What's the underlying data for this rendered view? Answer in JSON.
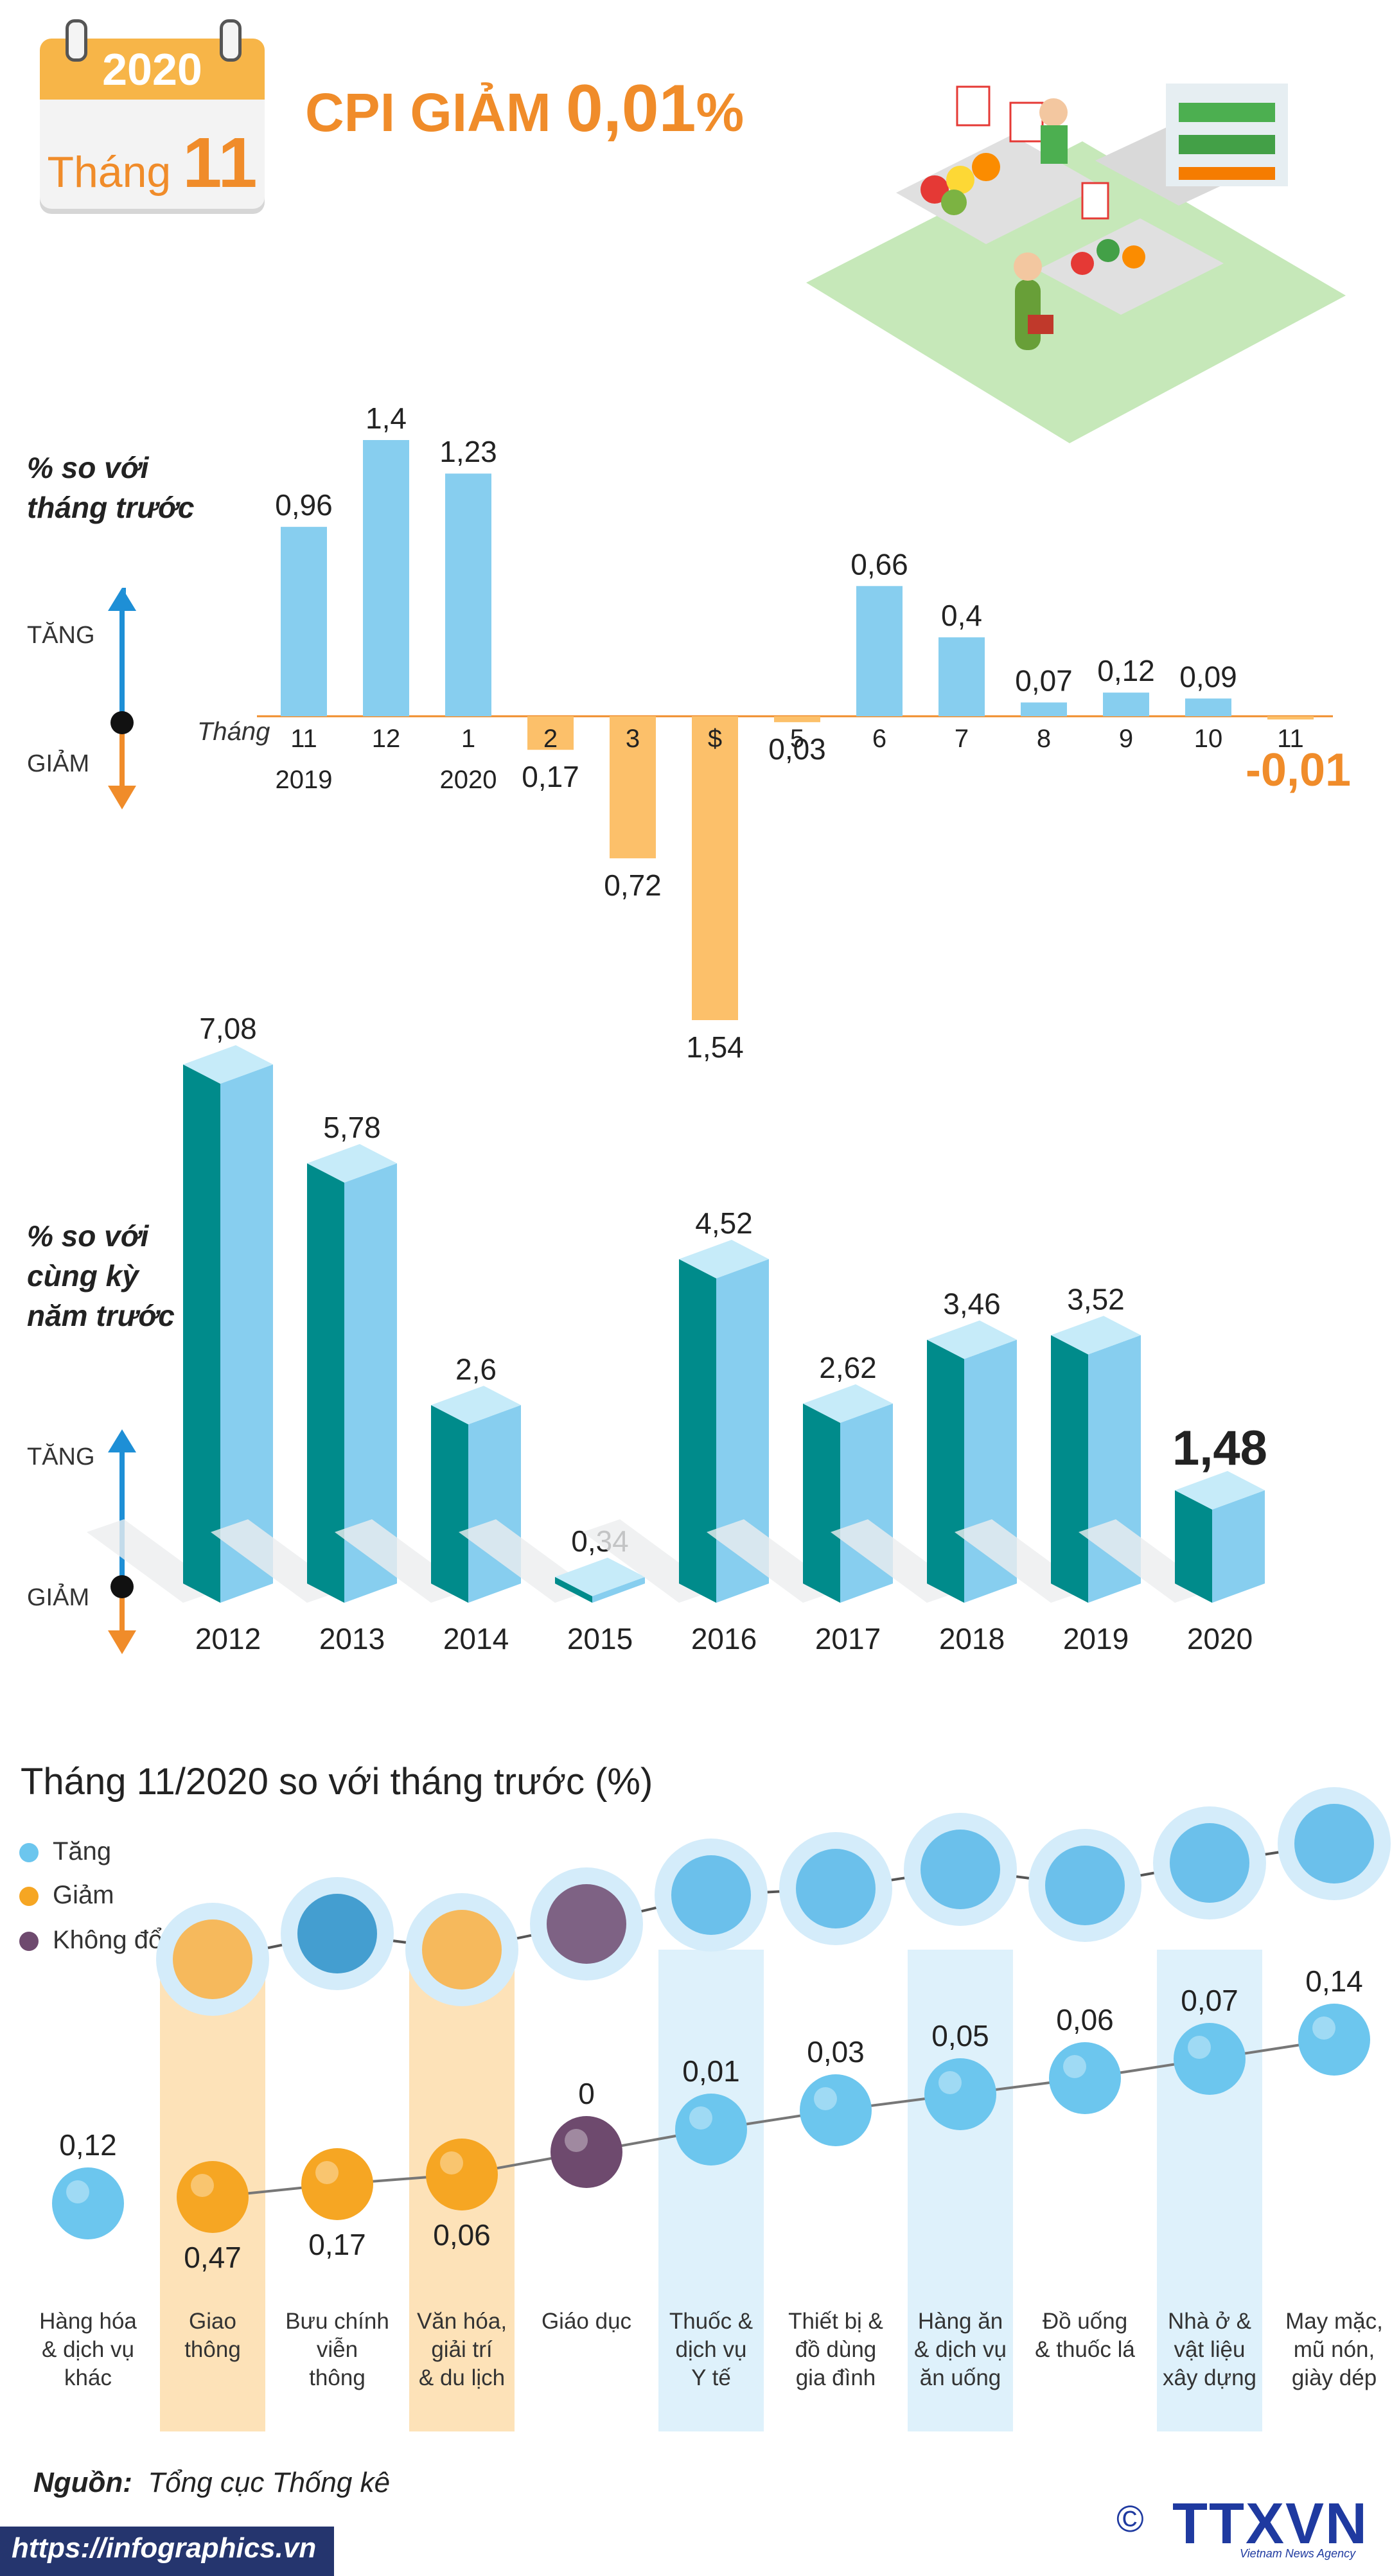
{
  "header": {
    "year": "2020",
    "month_word": "Tháng",
    "month_num": "11",
    "headline_prefix": "CPI GIẢM",
    "headline_value": "0,01",
    "headline_unit": "%"
  },
  "chart_monthly": {
    "axis_caption": "Tháng",
    "side_label_1": "% so với",
    "side_label_2": "tháng trước",
    "up_label": "TĂNG",
    "down_label": "GIẢM",
    "colors": {
      "increase": "#87ceef",
      "decrease": "#fcc06a",
      "emphasis": "#f08c2a"
    }
  },
  "chart_yearly": {
    "side_label_1": "% so với",
    "side_label_2": "cùng kỳ",
    "side_label_3": "năm trước",
    "up_label": "TĂNG",
    "down_label": "GIẢM",
    "colors": {
      "front": "#008b8b",
      "side": "#87ceef",
      "top": "#c6ebf9"
    }
  },
  "section3": {
    "title": "Tháng 11/2020 so với tháng trước (%)",
    "legend": [
      {
        "label": "Tăng",
        "color": "#6cc6ee"
      },
      {
        "label": "Giảm",
        "color": "#f6a623"
      },
      {
        "label": "Không đổi",
        "color": "#6e4a6e"
      }
    ]
  },
  "footer": {
    "source_label": "Nguồn:",
    "source_text": "Tổng cục Thống kê",
    "url": "https://infographics.vn",
    "copyright": "©",
    "logo": "TTXVN",
    "logo_sub": "Vietnam News Agency"
  },
  "chart_data": [
    {
      "type": "bar",
      "categories": [
        "11",
        "12",
        "1",
        "2",
        "3",
        "$",
        "5",
        "6",
        "7",
        "8",
        "9",
        "10",
        "11"
      ],
      "category_sublabels": [
        "2019",
        "",
        "2020",
        "",
        "",
        "",
        "",
        "",
        "",
        "",
        "",
        "",
        ""
      ],
      "values": [
        0.96,
        1.4,
        1.23,
        -0.17,
        -0.72,
        -1.54,
        -0.03,
        0.66,
        0.4,
        0.07,
        0.12,
        0.09,
        -0.01
      ],
      "value_labels": [
        "0,96",
        "1,4",
        "1,23",
        "0,17",
        "0,72",
        "1,54",
        "0,03",
        "0,66",
        "0,4",
        "0,07",
        "0,12",
        "0,09",
        "-0,01"
      ],
      "xlabel": "Tháng",
      "ylabel": "% so với tháng trước",
      "grid": false
    },
    {
      "type": "bar",
      "categories": [
        "2012",
        "2013",
        "2014",
        "2015",
        "2016",
        "2017",
        "2018",
        "2019",
        "2020"
      ],
      "values": [
        7.08,
        5.78,
        2.6,
        0.34,
        4.52,
        2.62,
        3.46,
        3.52,
        1.48
      ],
      "value_labels": [
        "7,08",
        "5,78",
        "2,6",
        "0,34",
        "4,52",
        "2,62",
        "3,46",
        "3,52",
        "1,48"
      ],
      "ylabel": "% so với cùng kỳ năm trước",
      "grid": false
    },
    {
      "type": "scatter",
      "categories": [
        "Hàng hóa & dịch vụ khác",
        "Giao thông",
        "Bưu chính viễn thông",
        "Văn hóa, giải trí & du lịch",
        "Giáo dục",
        "Thuốc & dịch vụ Y tế",
        "Thiết bị & đồ dùng gia đình",
        "Hàng ăn & dịch vụ ăn uống",
        "Đồ uống & thuốc lá",
        "Nhà ở & vật liệu xây dựng",
        "May mặc, mũ nón, giày dép"
      ],
      "category_lines": [
        [
          "Hàng hóa",
          "& dịch vụ",
          "khác"
        ],
        [
          "Giao",
          "thông"
        ],
        [
          "Bưu chính",
          "viễn",
          "thông"
        ],
        [
          "Văn hóa,",
          "giải trí",
          "& du lịch"
        ],
        [
          "Giáo dục"
        ],
        [
          "Thuốc &",
          "dịch vụ",
          "Y tế"
        ],
        [
          "Thiết bị &",
          "đồ dùng",
          "gia đình"
        ],
        [
          "Hàng ăn",
          "& dịch vụ",
          "ăn uống"
        ],
        [
          "Đồ uống",
          "& thuốc lá"
        ],
        [
          "Nhà ở &",
          "vật liệu",
          "xây dựng"
        ],
        [
          "May mặc,",
          "mũ nón,",
          "giày dép"
        ]
      ],
      "values": [
        0.12,
        -0.47,
        -0.17,
        -0.06,
        0,
        0.01,
        0.03,
        0.05,
        0.06,
        0.07,
        0.14
      ],
      "value_labels": [
        "0,12",
        "0,47",
        "0,17",
        "0,06",
        "0",
        "0,01",
        "0,03",
        "0,05",
        "0,06",
        "0,07",
        "0,14"
      ],
      "status": [
        "up",
        "down",
        "down",
        "down",
        "flat",
        "up",
        "up",
        "up",
        "up",
        "up",
        "up"
      ],
      "icons": [
        "",
        "traffic-light-icon",
        "antenna-icon",
        "clapperboard-icon",
        "graduation-cap-icon",
        "pill-icon",
        "washing-machine-icon",
        "meal-icon",
        "drinks-icon",
        "house-icon",
        "clothes-icon"
      ]
    }
  ]
}
